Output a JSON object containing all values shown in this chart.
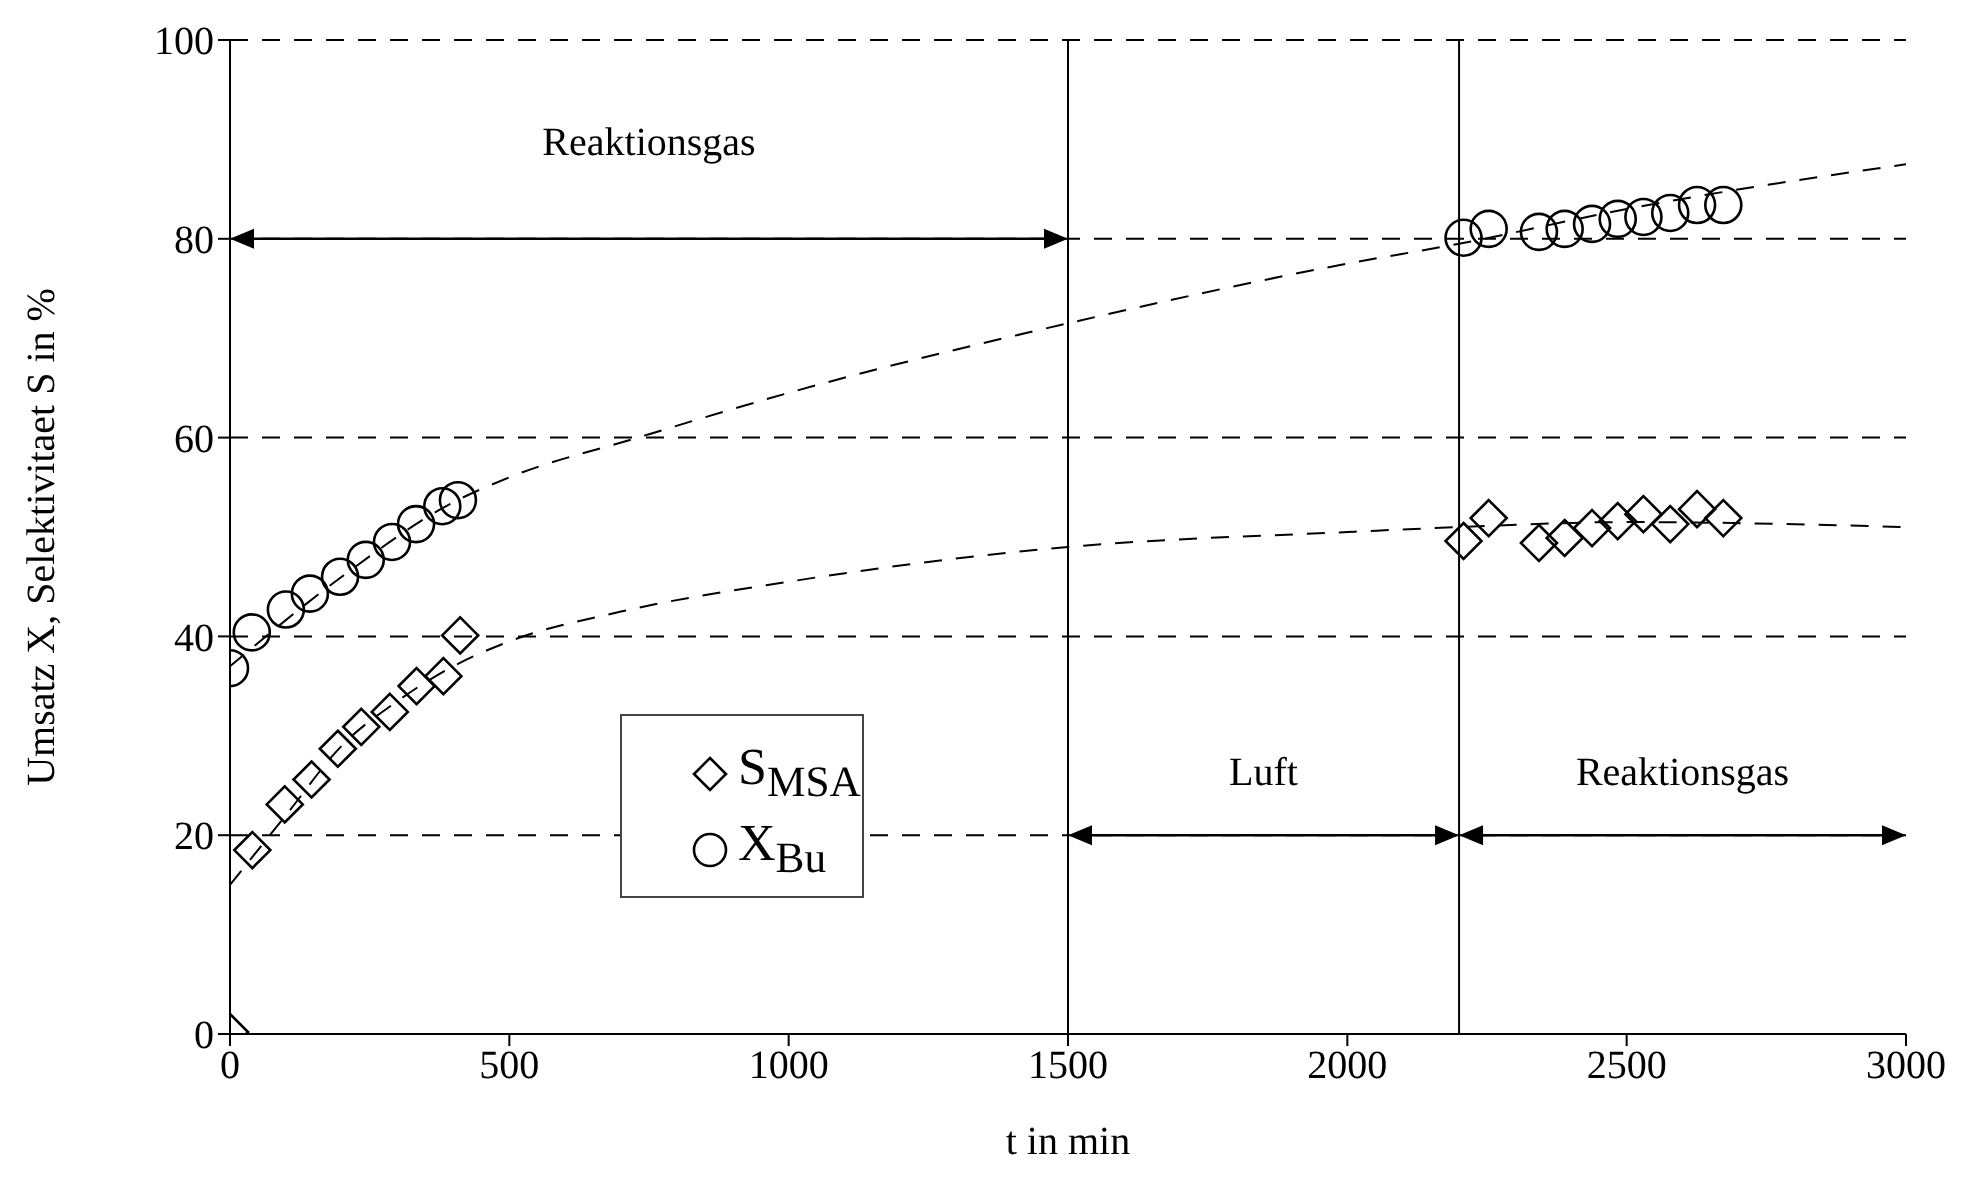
{
  "chart_data": {
    "type": "scatter",
    "xlabel": "t in min",
    "ylabel": "Umsatz X, Selektivitaet S in %",
    "xlim": [
      0,
      3000
    ],
    "xticks": [
      0,
      500,
      1000,
      1500,
      2000,
      2500,
      3000
    ],
    "ylim": [
      0,
      100
    ],
    "yticks": [
      0,
      20,
      40,
      60,
      80,
      100
    ],
    "grid": "y",
    "legend": "bottom left",
    "series": [
      {
        "type": "line",
        "color": "#000000",
        "line_style": "dashed",
        "marker": "none",
        "x": [
          0,
          100,
          200,
          300,
          400,
          500,
          700,
          1000,
          1500,
          2000,
          2200,
          2500,
          3000
        ],
        "values": [
          15,
          22,
          29,
          33.5,
          37,
          39.5,
          42.5,
          45.5,
          49,
          50.5,
          51,
          51.5,
          51
        ]
      },
      {
        "type": "line",
        "color": "#000000",
        "line_style": "dashed",
        "marker": "none",
        "x": [
          0,
          200,
          400,
          500,
          730,
          1000,
          1500,
          2000,
          2200,
          2500,
          3000
        ],
        "values": [
          37,
          46,
          53.5,
          56,
          60,
          64.5,
          71.5,
          77.5,
          79.5,
          83,
          87.5
        ]
      },
      {
        "name": "S$_{MSA}$",
        "color": "#000000",
        "marker": "diamond",
        "x": [
          0,
          40,
          98,
          146,
          193,
          235,
          286,
          334,
          382,
          412,
          2208,
          2253,
          2343,
          2389,
          2438,
          2484,
          2530,
          2578,
          2626,
          2673
        ],
        "values": [
          0.2,
          18.5,
          23.1,
          25.6,
          28.7,
          30.9,
          32.4,
          35,
          36,
          40.1,
          49.6,
          51.9,
          49.4,
          49.9,
          50.9,
          51.6,
          52.3,
          51.3,
          52.8,
          51.9
        ]
      },
      {
        "name": "X$_{Bu}$",
        "color": "#000000",
        "marker": "circle",
        "x": [
          0,
          39,
          100,
          143,
          197,
          243,
          290,
          333,
          380,
          408,
          2208,
          2253,
          2343,
          2389,
          2438,
          2484,
          2530,
          2578,
          2626,
          2673
        ],
        "values": [
          36.8,
          40.4,
          42.7,
          44.3,
          46,
          47.7,
          49.5,
          51.3,
          53.1,
          53.7,
          80.1,
          81,
          80.7,
          81,
          81.5,
          82,
          82.2,
          82.6,
          83.4,
          83.4
        ]
      }
    ],
    "ref_lines": [
      {
        "axis": "x",
        "value": 1500,
        "color": "#000000"
      },
      {
        "axis": "x",
        "value": 2200,
        "color": "#000000"
      }
    ],
    "annotations": [
      "Reaktionsgas",
      "Luft",
      "Reaktionsgas"
    ]
  }
}
